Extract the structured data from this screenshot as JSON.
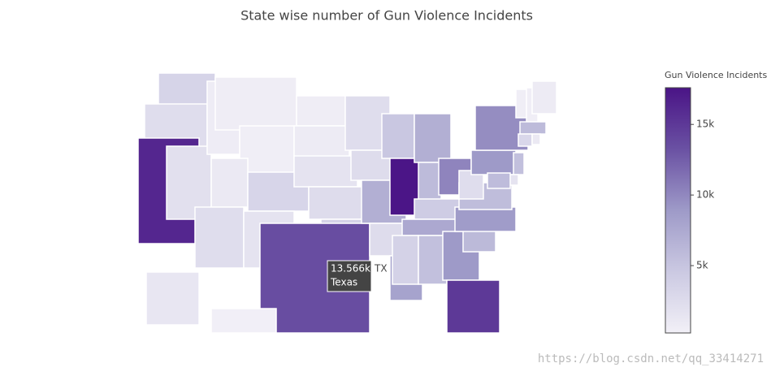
{
  "chart_data": {
    "type": "choropleth",
    "title": "State wise number of Gun Violence Incidents",
    "colorbar_title": "Gun Violence Incidents",
    "categories": [
      "WA",
      "OR",
      "CA",
      "NV",
      "ID",
      "MT",
      "WY",
      "UT",
      "AZ",
      "CO",
      "NM",
      "ND",
      "SD",
      "NE",
      "KS",
      "OK",
      "TX",
      "MN",
      "IA",
      "MO",
      "AR",
      "LA",
      "WI",
      "IL",
      "MI",
      "IN",
      "OH",
      "KY",
      "TN",
      "MS",
      "AL",
      "GA",
      "FL",
      "SC",
      "NC",
      "VA",
      "WV",
      "PA",
      "NY",
      "VT",
      "NH",
      "ME",
      "MA",
      "CT",
      "RI",
      "NJ",
      "DE",
      "MD",
      "AK",
      "HI"
    ],
    "values": [
      3400,
      2300,
      16300,
      2000,
      700,
      600,
      500,
      1000,
      2300,
      3200,
      1700,
      600,
      800,
      1700,
      2500,
      3500,
      13566,
      2400,
      2500,
      7000,
      2500,
      8100,
      4800,
      17500,
      7000,
      5900,
      10200,
      4200,
      7600,
      3600,
      5400,
      8900,
      15000,
      6000,
      8700,
      5700,
      2300,
      8900,
      9700,
      400,
      500,
      800,
      5900,
      3000,
      1000,
      5400,
      1700,
      5800,
      1300,
      300
    ],
    "colorscale": [
      "#f2f0f7",
      "#cbc9e2",
      "#9e9ac8",
      "#6a51a3",
      "#4a1486"
    ],
    "zlim": [
      230,
      17600
    ],
    "zticks": [
      {
        "value": 5000,
        "label": "5k"
      },
      {
        "value": 10000,
        "label": "10k"
      },
      {
        "value": 15000,
        "label": "15k"
      }
    ],
    "hover": {
      "code": "TX",
      "name": "Texas",
      "value": 13566,
      "label": "13.566k"
    }
  },
  "watermark": "https://blog.csdn.net/qq_33414271"
}
